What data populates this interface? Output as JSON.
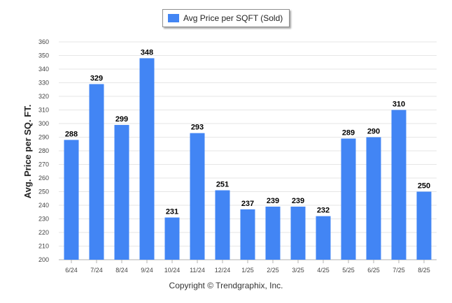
{
  "chart_data": {
    "type": "bar",
    "title": "",
    "xlabel": "",
    "ylabel": "Avg. Price per SQ. FT.",
    "categories": [
      "6/24",
      "7/24",
      "8/24",
      "9/24",
      "10/24",
      "11/24",
      "12/24",
      "1/25",
      "2/25",
      "3/25",
      "4/25",
      "5/25",
      "6/25",
      "7/25",
      "8/25"
    ],
    "series": [
      {
        "name": "Avg Price per SQFT (Sold)",
        "values": [
          288,
          329,
          299,
          348,
          231,
          293,
          251,
          237,
          239,
          239,
          232,
          289,
          290,
          310,
          250
        ]
      }
    ],
    "ylim": [
      200,
      360
    ],
    "yticks": [
      200,
      210,
      220,
      230,
      240,
      250,
      260,
      270,
      280,
      290,
      300,
      310,
      320,
      330,
      340,
      350,
      360
    ],
    "grid": true,
    "legend_position": "top-center",
    "bar_color": "#4285f4"
  },
  "footer": {
    "copyright": "Copyright © Trendgraphix, Inc."
  }
}
